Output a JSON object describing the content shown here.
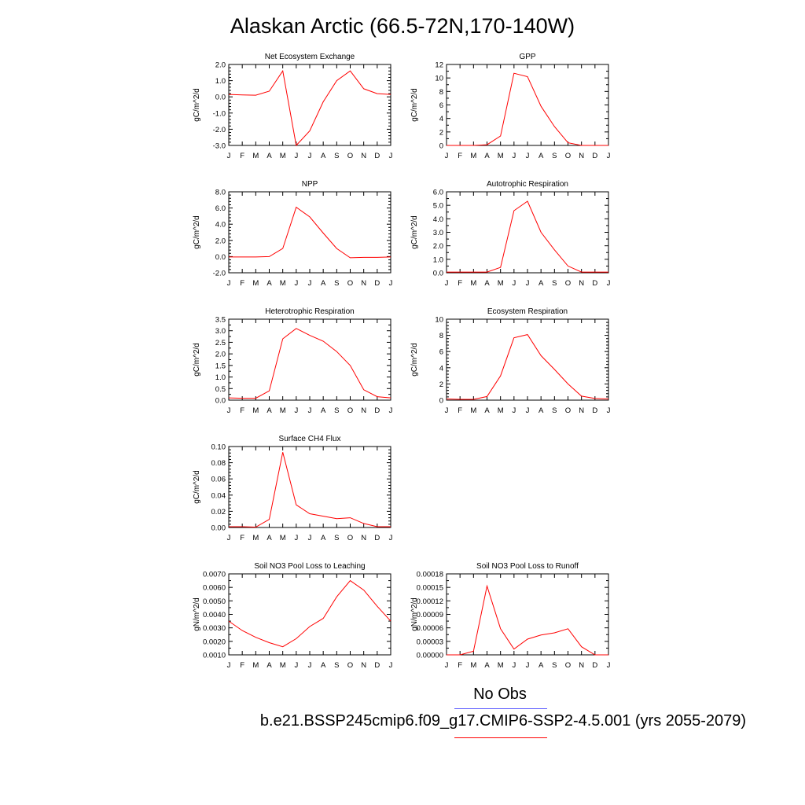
{
  "title": "Alaskan Arctic (66.5-72N,170-140W)",
  "legend": {
    "obs_label": "No Obs",
    "case_label": "b.e21.BSSP245cmip6.f09_g17.CMIP6-SSP2-4.5.001 (yrs 2055-2079)",
    "obs_color": "#5b5bff",
    "case_color": "#ff0000"
  },
  "months": [
    "J",
    "F",
    "M",
    "A",
    "M",
    "J",
    "J",
    "A",
    "S",
    "O",
    "N",
    "D",
    "J"
  ],
  "line_color": "#ff0000",
  "chart_data": [
    {
      "type": "line",
      "title": "Net Ecosystem Exchange",
      "ylabel": "gC/m^2/d",
      "ylim": [
        -3.0,
        2.0
      ],
      "yticks": [
        "2.0",
        "1.0",
        "0.0",
        "-1.0",
        "-2.0",
        "-3.0"
      ],
      "values": [
        0.15,
        0.12,
        0.1,
        0.35,
        1.6,
        -3.0,
        -2.1,
        -0.3,
        1.0,
        1.6,
        0.5,
        0.2,
        0.15
      ]
    },
    {
      "type": "line",
      "title": "GPP",
      "ylabel": "gC/m^2/d",
      "ylim": [
        0,
        12
      ],
      "yticks": [
        "12",
        "10",
        "8",
        "6",
        "4",
        "2",
        "0"
      ],
      "values": [
        0.0,
        0.0,
        0.0,
        0.1,
        1.4,
        10.7,
        10.2,
        5.8,
        2.8,
        0.4,
        0.0,
        0.0,
        0.0
      ]
    },
    {
      "type": "line",
      "title": "NPP",
      "ylabel": "gC/m^2/d",
      "ylim": [
        -2.0,
        8.0
      ],
      "yticks": [
        "8.0",
        "6.0",
        "4.0",
        "2.0",
        "0.0",
        "-2.0"
      ],
      "values": [
        -0.05,
        -0.05,
        -0.05,
        0.0,
        1.0,
        6.1,
        4.9,
        2.9,
        1.0,
        -0.15,
        -0.1,
        -0.1,
        -0.05
      ]
    },
    {
      "type": "line",
      "title": "Autotrophic Respiration",
      "ylabel": "gC/m^2/d",
      "ylim": [
        0,
        6.0
      ],
      "yticks": [
        "6.0",
        "5.0",
        "4.0",
        "3.0",
        "2.0",
        "1.0",
        "0.0"
      ],
      "values": [
        0.05,
        0.05,
        0.05,
        0.05,
        0.4,
        4.6,
        5.3,
        3.0,
        1.7,
        0.5,
        0.05,
        0.05,
        0.05
      ]
    },
    {
      "type": "line",
      "title": "Heterotrophic Respiration",
      "ylabel": "gC/m^2/d",
      "ylim": [
        0,
        3.5
      ],
      "yticks": [
        "3.5",
        "3.0",
        "2.5",
        "2.0",
        "1.5",
        "1.0",
        "0.5",
        "0.0"
      ],
      "values": [
        0.1,
        0.08,
        0.08,
        0.4,
        2.65,
        3.1,
        2.8,
        2.55,
        2.1,
        1.5,
        0.45,
        0.15,
        0.1
      ]
    },
    {
      "type": "line",
      "title": "Ecosystem Respiration",
      "ylabel": "gC/m^2/d",
      "ylim": [
        0,
        10
      ],
      "yticks": [
        "10",
        "8",
        "6",
        "4",
        "2",
        "0"
      ],
      "values": [
        0.15,
        0.1,
        0.1,
        0.45,
        3.0,
        7.7,
        8.1,
        5.5,
        3.8,
        2.0,
        0.5,
        0.2,
        0.15
      ]
    },
    {
      "type": "line",
      "title": "Surface CH4 Flux",
      "ylabel": "gC/m^2/d",
      "ylim": [
        0,
        0.1
      ],
      "yticks": [
        "0.10",
        "0.08",
        "0.06",
        "0.04",
        "0.02",
        "0.00"
      ],
      "values": [
        0.001,
        0.001,
        0.0005,
        0.01,
        0.093,
        0.028,
        0.017,
        0.014,
        0.011,
        0.012,
        0.005,
        0.001,
        0.001
      ]
    },
    {
      "type": "line",
      "title": "Soil NO3 Pool Loss to Leaching",
      "ylabel": "gN/m^2/d",
      "ylim": [
        0.001,
        0.007
      ],
      "yticks": [
        "0.0070",
        "0.0060",
        "0.0050",
        "0.0040",
        "0.0030",
        "0.0020",
        "0.0010"
      ],
      "values": [
        0.0035,
        0.0028,
        0.0023,
        0.0019,
        0.0016,
        0.0022,
        0.0031,
        0.0037,
        0.0053,
        0.0065,
        0.0058,
        0.0046,
        0.0035
      ]
    },
    {
      "type": "line",
      "title": "Soil NO3 Pool Loss to Runoff",
      "ylabel": "gN/m^2/d",
      "ylim": [
        0,
        0.00018
      ],
      "yticks": [
        "0.00018",
        "0.00015",
        "0.00012",
        "0.00009",
        "0.00006",
        "0.00003",
        "0.00000"
      ],
      "values": [
        0.0,
        0.0,
        8e-06,
        0.000153,
        5.8e-05,
        1.3e-05,
        3.5e-05,
        4.4e-05,
        4.9e-05,
        5.8e-05,
        1.8e-05,
        0.0,
        0.0
      ]
    }
  ]
}
